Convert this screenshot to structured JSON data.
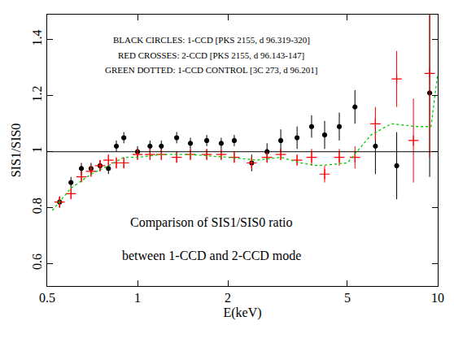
{
  "chart_data": {
    "type": "scatter",
    "x_label": "E(keV)",
    "y_label": "SIS1/SIS0",
    "log": "x",
    "grid": false,
    "xlim": [
      0.5,
      10
    ],
    "ylim": [
      0.52,
      1.49
    ],
    "xticks": [
      0.5,
      1,
      2,
      5,
      10
    ],
    "yticks": [
      0.6,
      0.8,
      1,
      1.2,
      1.4
    ],
    "reference_y": 1,
    "annotations": [
      "BLACK CIRCLES: 1-CCD [PKS 2155, d 96.319-320]",
      "RED CROSSES: 2-CCD [PKS 2155, d 96.143-147]",
      "GREEN DOTTED: 1-CCD CONTROL [3C 273, d 96.201]",
      "Comparison of SIS1/SIS0 ratio",
      "between 1-CCD and 2-CCD mode"
    ],
    "series": [
      {
        "color": "#000000",
        "marker": "circle",
        "type": "scatter",
        "x": [
          0.55,
          0.6,
          0.65,
          0.7,
          0.75,
          0.8,
          0.85,
          0.9,
          1.0,
          1.1,
          1.2,
          1.35,
          1.5,
          1.7,
          1.9,
          2.1,
          2.4,
          2.7,
          3.0,
          3.4,
          3.8,
          4.2,
          4.7,
          5.3,
          6.2,
          7.3,
          9.4
        ],
        "values": [
          0.82,
          0.89,
          0.94,
          0.94,
          0.95,
          0.94,
          1.02,
          1.05,
          1.0,
          1.02,
          1.02,
          1.05,
          1.03,
          1.04,
          1.03,
          1.04,
          0.96,
          1.0,
          1.04,
          1.05,
          1.09,
          1.06,
          1.09,
          1.16,
          1.02,
          0.95,
          1.21
        ],
        "errors": [
          0.02,
          0.02,
          0.02,
          0.02,
          0.02,
          0.02,
          0.02,
          0.02,
          0.02,
          0.02,
          0.02,
          0.02,
          0.02,
          0.02,
          0.02,
          0.02,
          0.03,
          0.03,
          0.04,
          0.04,
          0.04,
          0.05,
          0.05,
          0.06,
          0.1,
          0.12,
          0.3
        ]
      },
      {
        "color": "#ff0000",
        "marker": "cross",
        "type": "scatter",
        "x": [
          0.55,
          0.6,
          0.65,
          0.7,
          0.75,
          0.8,
          0.85,
          0.9,
          1.0,
          1.1,
          1.2,
          1.35,
          1.5,
          1.7,
          1.9,
          2.1,
          2.4,
          2.7,
          3.0,
          3.4,
          3.8,
          4.2,
          4.7,
          5.3,
          6.2,
          7.3,
          8.3,
          9.4
        ],
        "values": [
          0.82,
          0.85,
          0.91,
          0.93,
          0.95,
          0.97,
          0.96,
          0.96,
          0.99,
          0.99,
          0.99,
          0.98,
          0.99,
          0.99,
          0.99,
          0.98,
          0.96,
          0.98,
          0.99,
          0.97,
          0.98,
          0.92,
          0.98,
          0.98,
          1.1,
          1.26,
          1.04,
          1.28
        ],
        "errors": [
          0.02,
          0.02,
          0.02,
          0.02,
          0.02,
          0.02,
          0.02,
          0.02,
          0.02,
          0.02,
          0.02,
          0.02,
          0.02,
          0.02,
          0.02,
          0.02,
          0.02,
          0.02,
          0.02,
          0.02,
          0.03,
          0.03,
          0.03,
          0.04,
          0.06,
          0.1,
          0.15,
          0.3
        ]
      },
      {
        "color": "#00cc00",
        "line_style": "dotted",
        "type": "line",
        "x": [
          0.52,
          0.6,
          0.7,
          0.8,
          0.9,
          1.0,
          1.2,
          1.5,
          2.0,
          2.5,
          3.0,
          3.5,
          4.0,
          5.0,
          6.0,
          7.0,
          8.5,
          9.5,
          10
        ],
        "values": [
          0.79,
          0.87,
          0.92,
          0.95,
          0.98,
          0.98,
          0.99,
          0.99,
          0.98,
          0.97,
          0.98,
          0.96,
          0.95,
          0.96,
          1.06,
          1.1,
          1.09,
          1.09,
          1.28
        ]
      }
    ]
  }
}
